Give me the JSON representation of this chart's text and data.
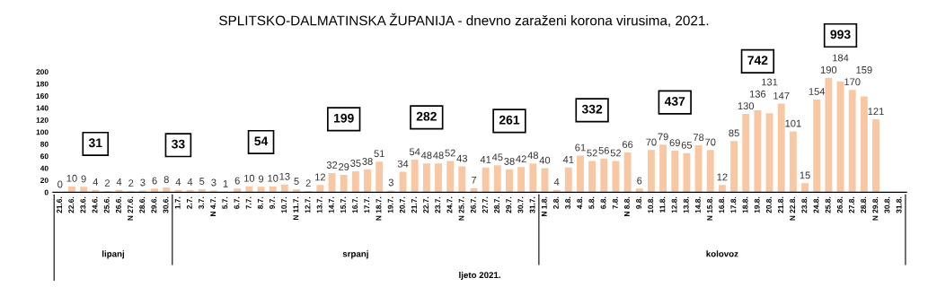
{
  "chart_data": {
    "type": "bar",
    "title": "SPLITSKO-DALMATINSKA ŽUPANIJA - dnevno zaraženi korona virusima, 2021.",
    "categories": [
      "21.6.",
      "22.6.",
      "23.6.",
      "24.6.",
      "25.6.",
      "26.6.",
      "N 27.6.",
      "28.6.",
      "29.6.",
      "30.6.",
      "1.7.",
      "2.7.",
      "3.7.",
      "N 4.7.",
      "5.7.",
      "6.7.",
      "7.7.",
      "8.7.",
      "9.7.",
      "10.7.",
      "N 11.7.",
      "12.7.",
      "13.7.",
      "14.7.",
      "15.7.",
      "16.7.",
      "17.7.",
      "N 18.7.",
      "19.7.",
      "20.7.",
      "21.7.",
      "22.7.",
      "23.7.",
      "24.7.",
      "N 25.7.",
      "26.7.",
      "27.7.",
      "28.7.",
      "29.7.",
      "30.7.",
      "31.7.",
      "N 1.8.",
      "2.8.",
      "3.8.",
      "4.8.",
      "5.8.",
      "6.8.",
      "7.8.",
      "N 8.8.",
      "9.8.",
      "10.8.",
      "11.8.",
      "12.8.",
      "13.8.",
      "14.8.",
      "N 15.8.",
      "16.8.",
      "17.8.",
      "18.8.",
      "19.8.",
      "20.8.",
      "21.8.",
      "N 22.8.",
      "23.8.",
      "24.8.",
      "25.8.",
      "26.8.",
      "27.8.",
      "28.8.",
      "N 29.8.",
      "30.8.",
      "31.8."
    ],
    "values": [
      0,
      10,
      9,
      4,
      2,
      4,
      2,
      3,
      6,
      8,
      4,
      4,
      5,
      3,
      1,
      6,
      10,
      9,
      10,
      13,
      5,
      2,
      12,
      32,
      29,
      35,
      38,
      51,
      3,
      34,
      54,
      48,
      48,
      52,
      43,
      7,
      41,
      45,
      38,
      42,
      48,
      40,
      4,
      41,
      61,
      52,
      56,
      52,
      66,
      6,
      70,
      79,
      69,
      65,
      78,
      70,
      12,
      85,
      130,
      136,
      131,
      147,
      101,
      15,
      154,
      190,
      184,
      170,
      159,
      121,
      null,
      null
    ],
    "color": "#f8c8a4",
    "ylim": [
      0,
      200
    ],
    "yticks": [
      0,
      20,
      40,
      60,
      80,
      100,
      120,
      140,
      160,
      180,
      200
    ],
    "grid": false,
    "data_labels": true,
    "annotations": [
      "31",
      "33",
      "54",
      "199",
      "282",
      "261",
      "332",
      "437",
      "742",
      "993",
      "lipanj",
      "srpanj",
      "kolovoz",
      "ljeto 2021."
    ]
  }
}
